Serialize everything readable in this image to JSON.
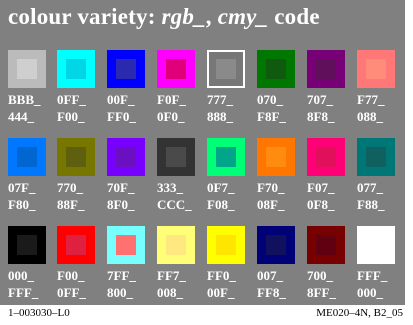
{
  "title": {
    "main": "colour variety:",
    "rgb": "rgb_",
    "sep": ",",
    "cmy": "cmy_",
    "tail": "code"
  },
  "swatches": [
    {
      "l1": "BBB_",
      "l2": "444_",
      "outer": "#bbbbbb",
      "inner": "#cfcfcf"
    },
    {
      "l1": "0FF_",
      "l2": "F00_",
      "outer": "#00ffff",
      "inner": "#00d6e6"
    },
    {
      "l1": "00F_",
      "l2": "FF0_",
      "outer": "#0000ff",
      "inner": "#2a2ab0"
    },
    {
      "l1": "F0F_",
      "l2": "0F0_",
      "outer": "#ff00ff",
      "inner": "#e0007a"
    },
    {
      "l1": "777_",
      "l2": "888_",
      "outer": "#777777",
      "inner": "#8a8a8a",
      "framed": true
    },
    {
      "l1": "070_",
      "l2": "F8F_",
      "outer": "#007700",
      "inner": "#105a10"
    },
    {
      "l1": "707_",
      "l2": "8F8_",
      "outer": "#770077",
      "inner": "#60105a"
    },
    {
      "l1": "F77_",
      "l2": "088_",
      "outer": "#ff7777",
      "inner": "#ff8c7a"
    },
    {
      "l1": "07F_",
      "l2": "F80_",
      "outer": "#0077ff",
      "inner": "#0066d0"
    },
    {
      "l1": "770_",
      "l2": "88F_",
      "outer": "#777700",
      "inner": "#5f5f10"
    },
    {
      "l1": "70F_",
      "l2": "8F0_",
      "outer": "#7700ff",
      "inner": "#6a10c0"
    },
    {
      "l1": "333_",
      "l2": "CCC_",
      "outer": "#333333",
      "inner": "#4a4a4a"
    },
    {
      "l1": "0F7_",
      "l2": "F08_",
      "outer": "#00ff77",
      "inner": "#00a58a"
    },
    {
      "l1": "F70_",
      "l2": "08F_",
      "outer": "#ff7700",
      "inner": "#ff8c10"
    },
    {
      "l1": "F07_",
      "l2": "0F8_",
      "outer": "#ff0077",
      "inner": "#e0105a"
    },
    {
      "l1": "077_",
      "l2": "F88_",
      "outer": "#007777",
      "inner": "#106060"
    },
    {
      "l1": "000_",
      "l2": "FFF_",
      "outer": "#000000",
      "inner": "#1a1a1a"
    },
    {
      "l1": "F00_",
      "l2": "0FF_",
      "outer": "#ff0000",
      "inner": "#e02040"
    },
    {
      "l1": "7FF_",
      "l2": "800_",
      "outer": "#77ffff",
      "inner": "#ff7070"
    },
    {
      "l1": "FF7_",
      "l2": "008_",
      "outer": "#ffff77",
      "inner": "#ffe880"
    },
    {
      "l1": "FF0_",
      "l2": "00F_",
      "outer": "#ffff00",
      "inner": "#ffe600"
    },
    {
      "l1": "007_",
      "l2": "FF8_",
      "outer": "#000077",
      "inner": "#10105f"
    },
    {
      "l1": "700_",
      "l2": "8FF_",
      "outer": "#770000",
      "inner": "#600010"
    },
    {
      "l1": "FFF_",
      "l2": "000_",
      "outer": "#ffffff",
      "inner": "#ffffff"
    }
  ],
  "footer": {
    "left": "1–003030–L0",
    "right": "ME020–4N, B2_05"
  }
}
